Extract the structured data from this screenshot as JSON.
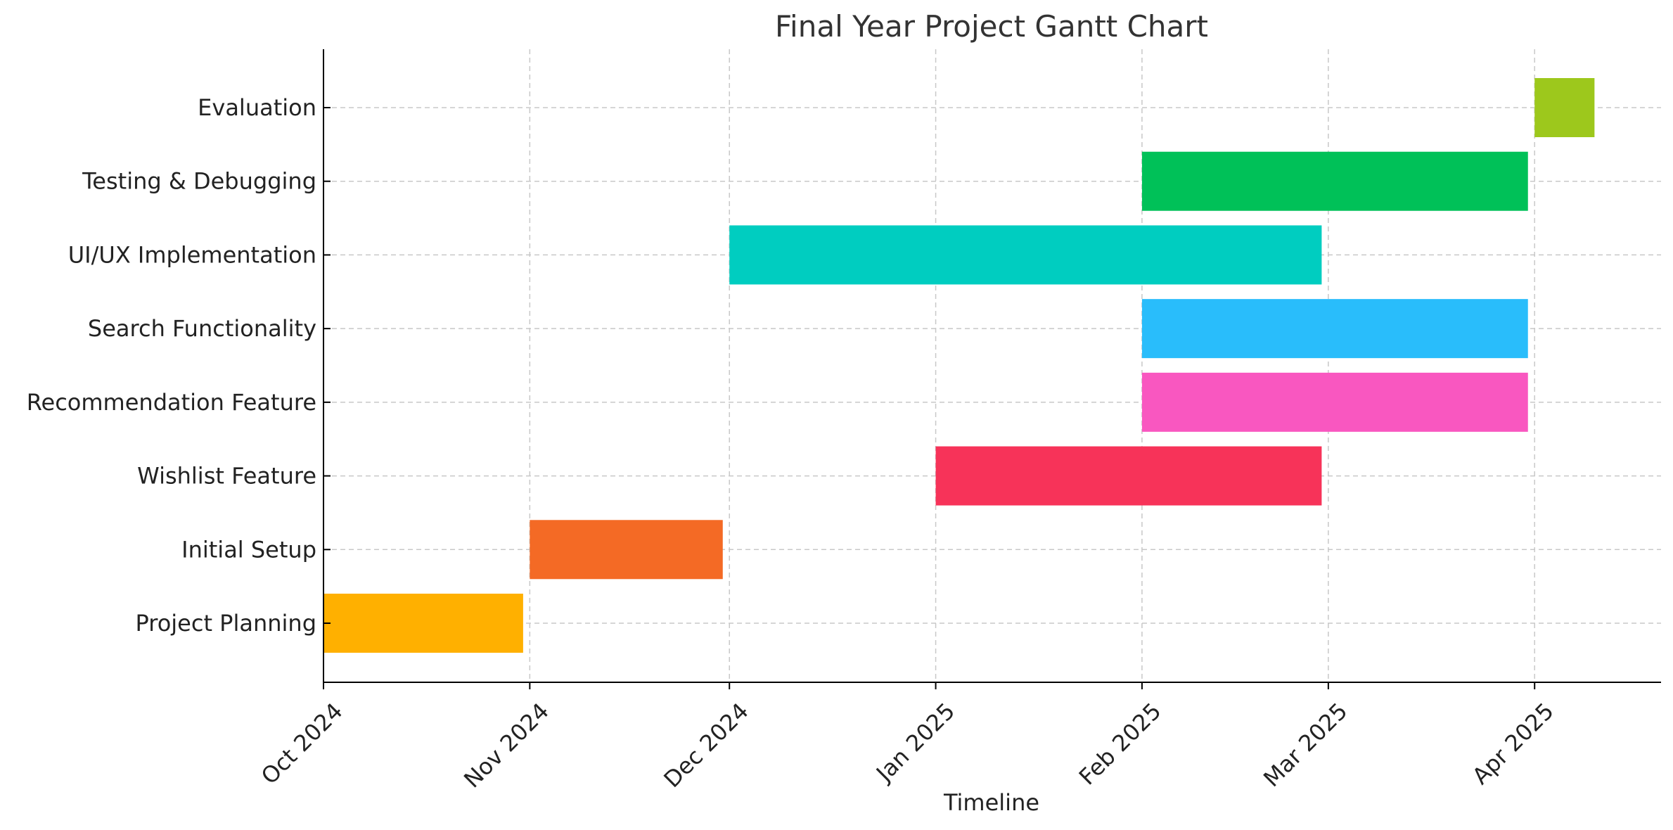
{
  "chart_data": {
    "type": "gantt",
    "title": "Final Year Project Gantt Chart",
    "xlabel": "Timeline",
    "ylabel": "",
    "grid": true,
    "x_range": [
      "2024-10-01",
      "2025-04-20"
    ],
    "x_ticks": [
      {
        "date": "2024-10-01",
        "label": "Oct 2024"
      },
      {
        "date": "2024-11-01",
        "label": "Nov 2024"
      },
      {
        "date": "2024-12-01",
        "label": "Dec 2024"
      },
      {
        "date": "2025-01-01",
        "label": "Jan 2025"
      },
      {
        "date": "2025-02-01",
        "label": "Feb 2025"
      },
      {
        "date": "2025-03-01",
        "label": "Mar 2025"
      },
      {
        "date": "2025-04-01",
        "label": "Apr 2025"
      }
    ],
    "tasks": [
      {
        "name": "Project Planning",
        "start": "2024-10-01",
        "end": "2024-10-31",
        "color": "#FFB000"
      },
      {
        "name": "Initial Setup",
        "start": "2024-11-01",
        "end": "2024-11-30",
        "color": "#F46A25"
      },
      {
        "name": "Wishlist Feature",
        "start": "2025-01-01",
        "end": "2025-02-28",
        "color": "#F73359"
      },
      {
        "name": "Recommendation Feature",
        "start": "2025-02-01",
        "end": "2025-03-31",
        "color": "#F957C0"
      },
      {
        "name": "Search Functionality",
        "start": "2025-02-01",
        "end": "2025-03-31",
        "color": "#29BDFB"
      },
      {
        "name": "UI/UX Implementation",
        "start": "2024-12-01",
        "end": "2025-02-28",
        "color": "#00CDC0"
      },
      {
        "name": "Testing & Debugging",
        "start": "2025-02-01",
        "end": "2025-03-31",
        "color": "#00C158"
      },
      {
        "name": "Evaluation",
        "start": "2025-04-01",
        "end": "2025-04-10",
        "color": "#9DC81C"
      }
    ]
  }
}
